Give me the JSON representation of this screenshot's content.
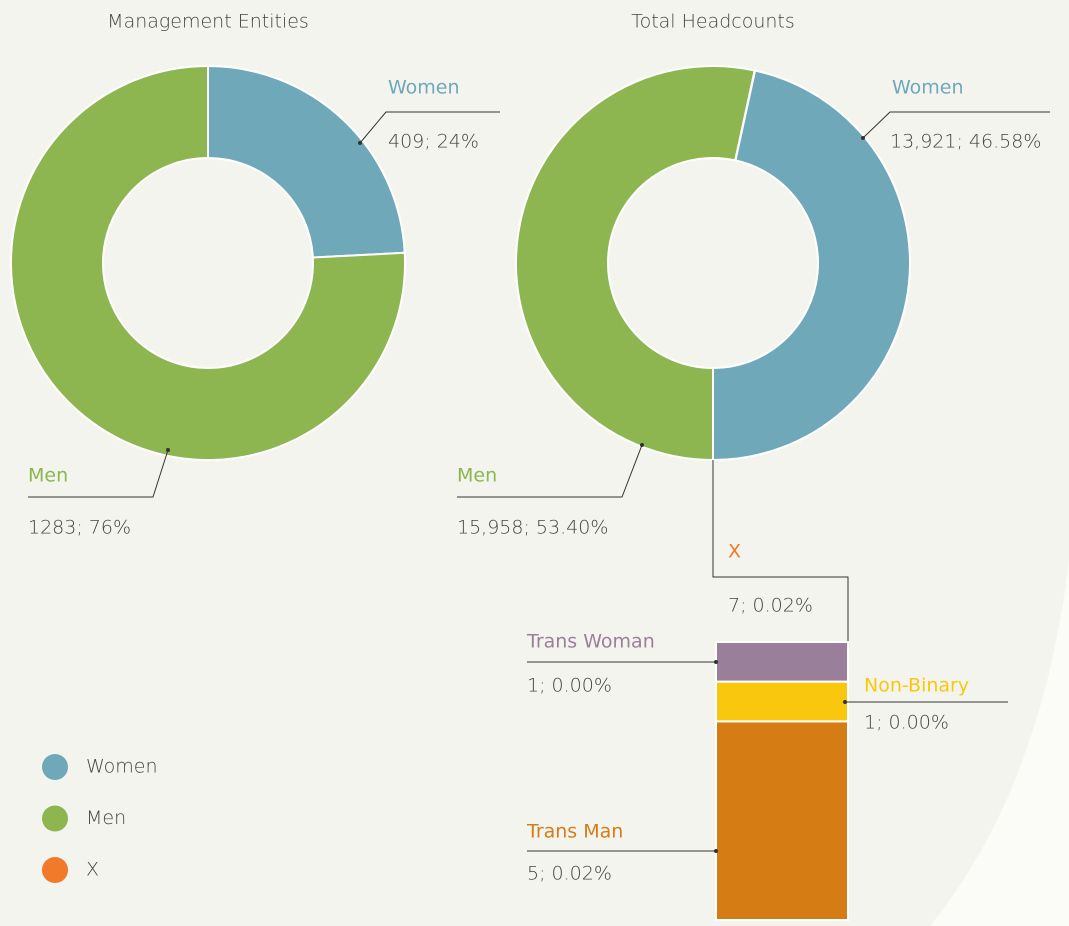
{
  "chart_data": [
    {
      "type": "donut",
      "title": "Management Entities",
      "categories": [
        "Women",
        "Men"
      ],
      "values": [
        409,
        1283
      ],
      "value_labels": [
        "409; 24%",
        "1283; 76%"
      ],
      "colors": [
        "#6fa8b9",
        "#8db550"
      ]
    },
    {
      "type": "donut",
      "title": "Total Headcounts",
      "categories": [
        "Women",
        "Men",
        "X"
      ],
      "values": [
        13921,
        15958,
        7
      ],
      "value_labels": [
        "13,921; 46.58%",
        "15,958; 53.40%",
        "7; 0.02%"
      ],
      "colors": [
        "#6fa8b9",
        "#8db550",
        "#f07a2a"
      ]
    },
    {
      "type": "stacked-bar",
      "categories": [
        "Trans Woman",
        "Non-Binary",
        "Trans Man"
      ],
      "values": [
        1,
        1,
        5
      ],
      "value_labels": [
        "1; 0.00%",
        "1; 0.00%",
        "5; 0.02%"
      ],
      "colors": [
        "#9a7f9a",
        "#f9c80e",
        "#d57c15"
      ]
    }
  ]
}
